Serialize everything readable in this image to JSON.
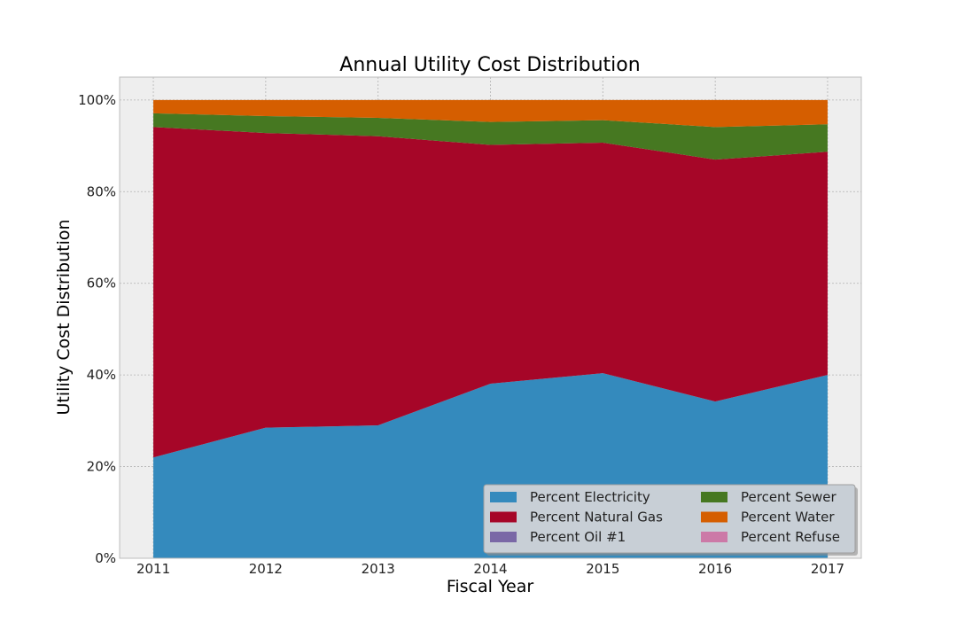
{
  "chart_data": {
    "type": "area",
    "stacked": true,
    "title": "Annual Utility Cost Distribution",
    "xlabel": "Fiscal Year",
    "ylabel": "Utility Cost Distribution",
    "x": [
      2011,
      2012,
      2013,
      2014,
      2015,
      2016,
      2017
    ],
    "xlim": [
      2010.7,
      2017.3
    ],
    "ylim": [
      0,
      1.05
    ],
    "yticks": [
      0,
      0.2,
      0.4,
      0.6,
      0.8,
      1.0
    ],
    "ytick_labels": [
      "0%",
      "20%",
      "40%",
      "60%",
      "80%",
      "100%"
    ],
    "grid": true,
    "legend_position": "lower-right",
    "legend_columns": 2,
    "series": [
      {
        "name": "Percent Electricity",
        "color": "#348ABD",
        "values": [
          0.22,
          0.285,
          0.29,
          0.381,
          0.404,
          0.342,
          0.4
        ]
      },
      {
        "name": "Percent Natural Gas",
        "color": "#A60628",
        "values": [
          0.721,
          0.643,
          0.631,
          0.521,
          0.503,
          0.528,
          0.487
        ]
      },
      {
        "name": "Percent Oil #1",
        "color": "#7A68A6",
        "values": [
          0,
          0,
          0,
          0,
          0,
          0,
          0
        ]
      },
      {
        "name": "Percent Sewer",
        "color": "#467821",
        "values": [
          0.03,
          0.037,
          0.04,
          0.05,
          0.049,
          0.071,
          0.06
        ]
      },
      {
        "name": "Percent Water",
        "color": "#D55E00",
        "values": [
          0.029,
          0.035,
          0.039,
          0.048,
          0.044,
          0.059,
          0.053
        ]
      },
      {
        "name": "Percent Refuse",
        "color": "#CC79A7",
        "values": [
          0,
          0,
          0,
          0,
          0,
          0,
          0
        ]
      }
    ]
  }
}
